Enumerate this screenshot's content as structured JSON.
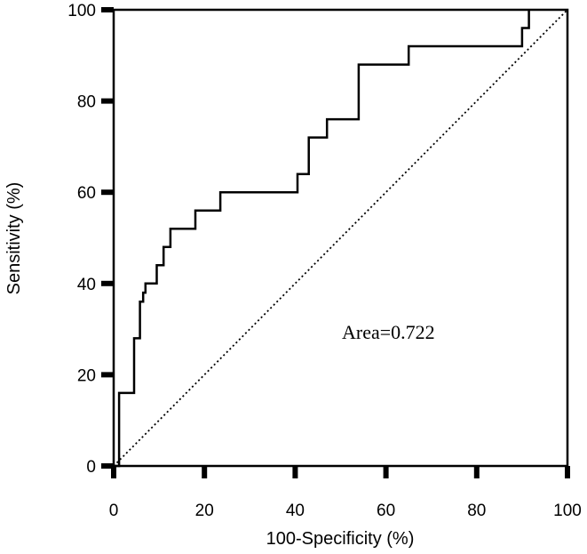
{
  "chart_data": {
    "type": "line",
    "title": "",
    "xlabel": "100-Specificity (%)",
    "ylabel": "Sensitivity (%)",
    "xlim": [
      0,
      100
    ],
    "ylim": [
      0,
      100
    ],
    "xticks": [
      0,
      20,
      40,
      60,
      80,
      100
    ],
    "yticks": [
      0,
      20,
      40,
      60,
      80,
      100
    ],
    "xtick_labels": [
      "0",
      "20",
      "40",
      "60",
      "80",
      "100"
    ],
    "ytick_labels": [
      "0",
      "20",
      "40",
      "60",
      "80",
      "100"
    ],
    "grid": false,
    "annotation": "Area=0.722",
    "series": [
      {
        "style": "solid",
        "x": [
          0,
          1.2,
          1.2,
          4.5,
          4.5,
          5.8,
          5.8,
          6.5,
          6.5,
          7,
          7,
          9.5,
          9.5,
          11,
          11,
          12.5,
          12.5,
          14,
          14,
          18,
          18,
          23.5,
          23.5,
          40.5,
          40.5,
          43,
          43,
          47,
          47,
          54,
          54,
          65,
          65,
          90,
          90,
          91.5,
          91.5
        ],
        "y": [
          0,
          0,
          16,
          16,
          28,
          28,
          36,
          36,
          38,
          38,
          40,
          40,
          44,
          44,
          48,
          48,
          52,
          52,
          52,
          52,
          56,
          56,
          60,
          60,
          64,
          64,
          72,
          72,
          76,
          76,
          88,
          88,
          92,
          92,
          96,
          96,
          100
        ]
      },
      {
        "style": "dotted",
        "x": [
          0,
          100
        ],
        "y": [
          0,
          100
        ]
      }
    ]
  }
}
